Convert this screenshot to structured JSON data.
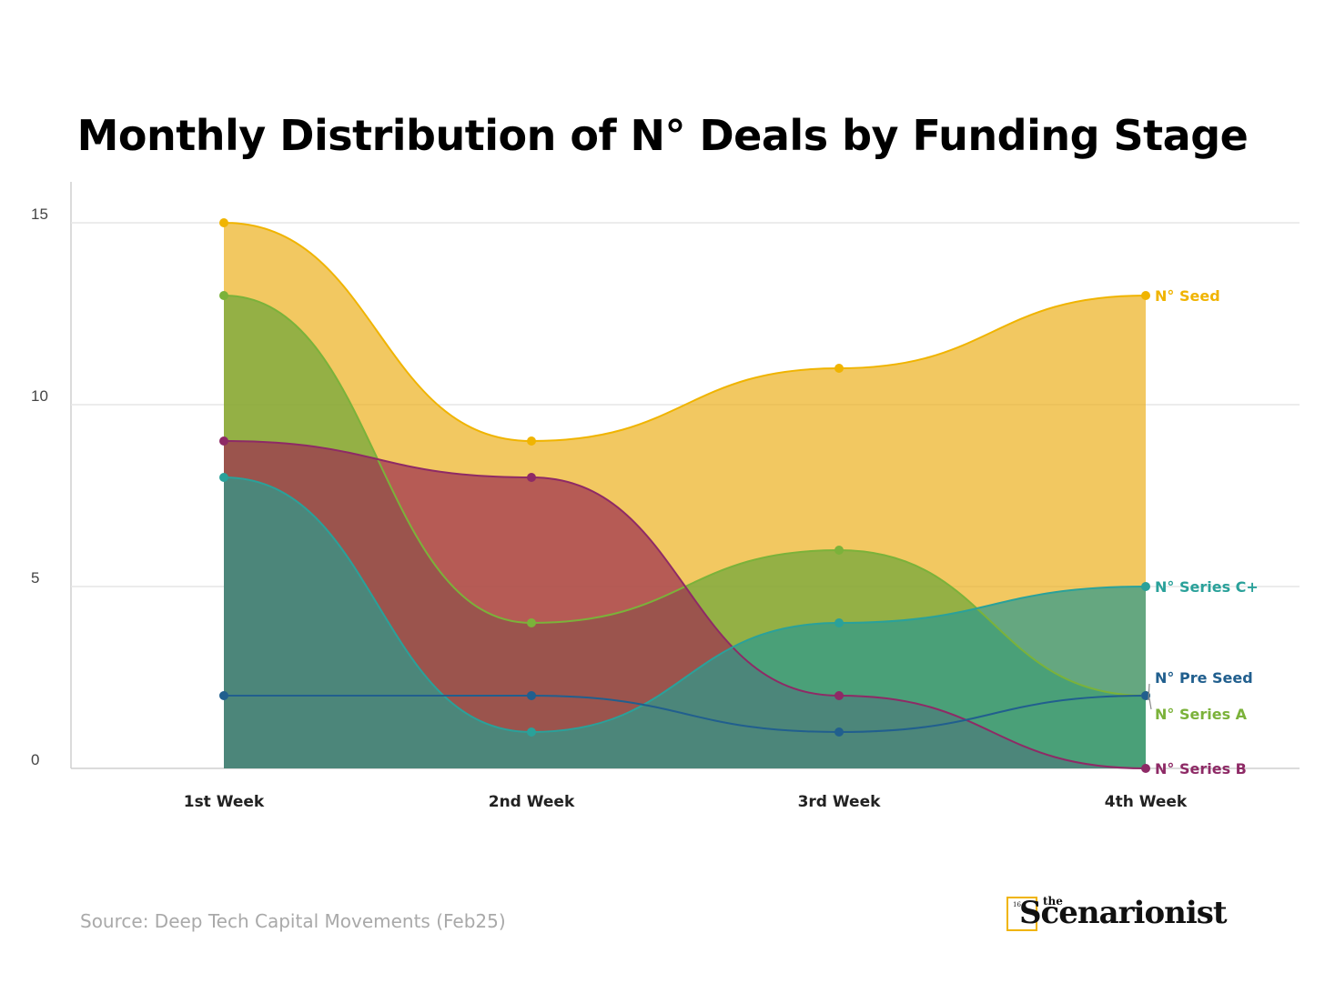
{
  "chart_data": {
    "type": "area",
    "title": "Monthly Distribution of N° Deals by Funding Stage",
    "categories": [
      "1st Week",
      "2nd Week",
      "3rd Week",
      "4th Week"
    ],
    "ylim": [
      0,
      16
    ],
    "yticks": [
      0,
      5,
      10,
      15
    ],
    "grid": true,
    "legend": "inline-right",
    "series": [
      {
        "name": "N° Seed",
        "values": [
          15,
          9,
          11,
          13
        ],
        "color": "#f0b400"
      },
      {
        "name": "N° Series A",
        "values": [
          13,
          4,
          6,
          2
        ],
        "color": "#7bb23a"
      },
      {
        "name": "N° Series B",
        "values": [
          9,
          8,
          2,
          0
        ],
        "color": "#8e2a66"
      },
      {
        "name": "N° Series C+",
        "values": [
          8,
          1,
          4,
          5
        ],
        "color": "#2aa19a"
      },
      {
        "name": "N° Pre Seed",
        "values": [
          2,
          2,
          1,
          2
        ],
        "color": "#215f8e"
      }
    ]
  },
  "footer": {
    "source": "Source: Deep Tech Capital Movements (Feb25)"
  },
  "brand": {
    "small": "16",
    "the": "the",
    "name": "Scenarionist"
  }
}
